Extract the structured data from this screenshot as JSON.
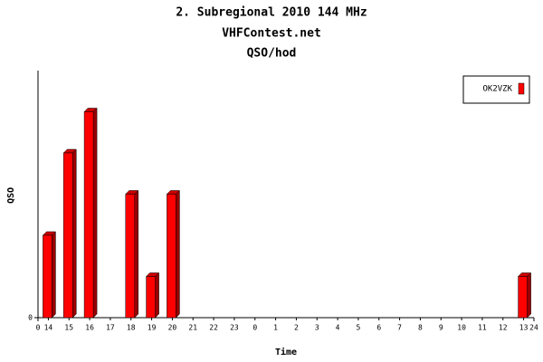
{
  "chart_data": {
    "type": "bar",
    "title": "2. Subregional 2010 144 MHz",
    "subtitle": "VHFContest.net",
    "subtitle2": "QSO/hod",
    "x_label": "Time",
    "y_label": "QSO",
    "categories": [
      "14",
      "15",
      "16",
      "17",
      "18",
      "19",
      "20",
      "21",
      "22",
      "23",
      "0",
      "1",
      "2",
      "3",
      "4",
      "5",
      "6",
      "7",
      "8",
      "9",
      "10",
      "11",
      "12",
      "13"
    ],
    "series": [
      {
        "name": "OK2VZK",
        "color": "#ff0000",
        "values": [
          2,
          4,
          5,
          0,
          3,
          1,
          3,
          0,
          0,
          0,
          0,
          0,
          0,
          0,
          0,
          0,
          0,
          0,
          0,
          0,
          0,
          0,
          0,
          1
        ]
      }
    ],
    "xlim": [
      0,
      24
    ],
    "xticks": [
      0,
      24
    ],
    "ylim": [
      0,
      6
    ],
    "yticks": [
      0
    ],
    "legend": "top-right"
  }
}
